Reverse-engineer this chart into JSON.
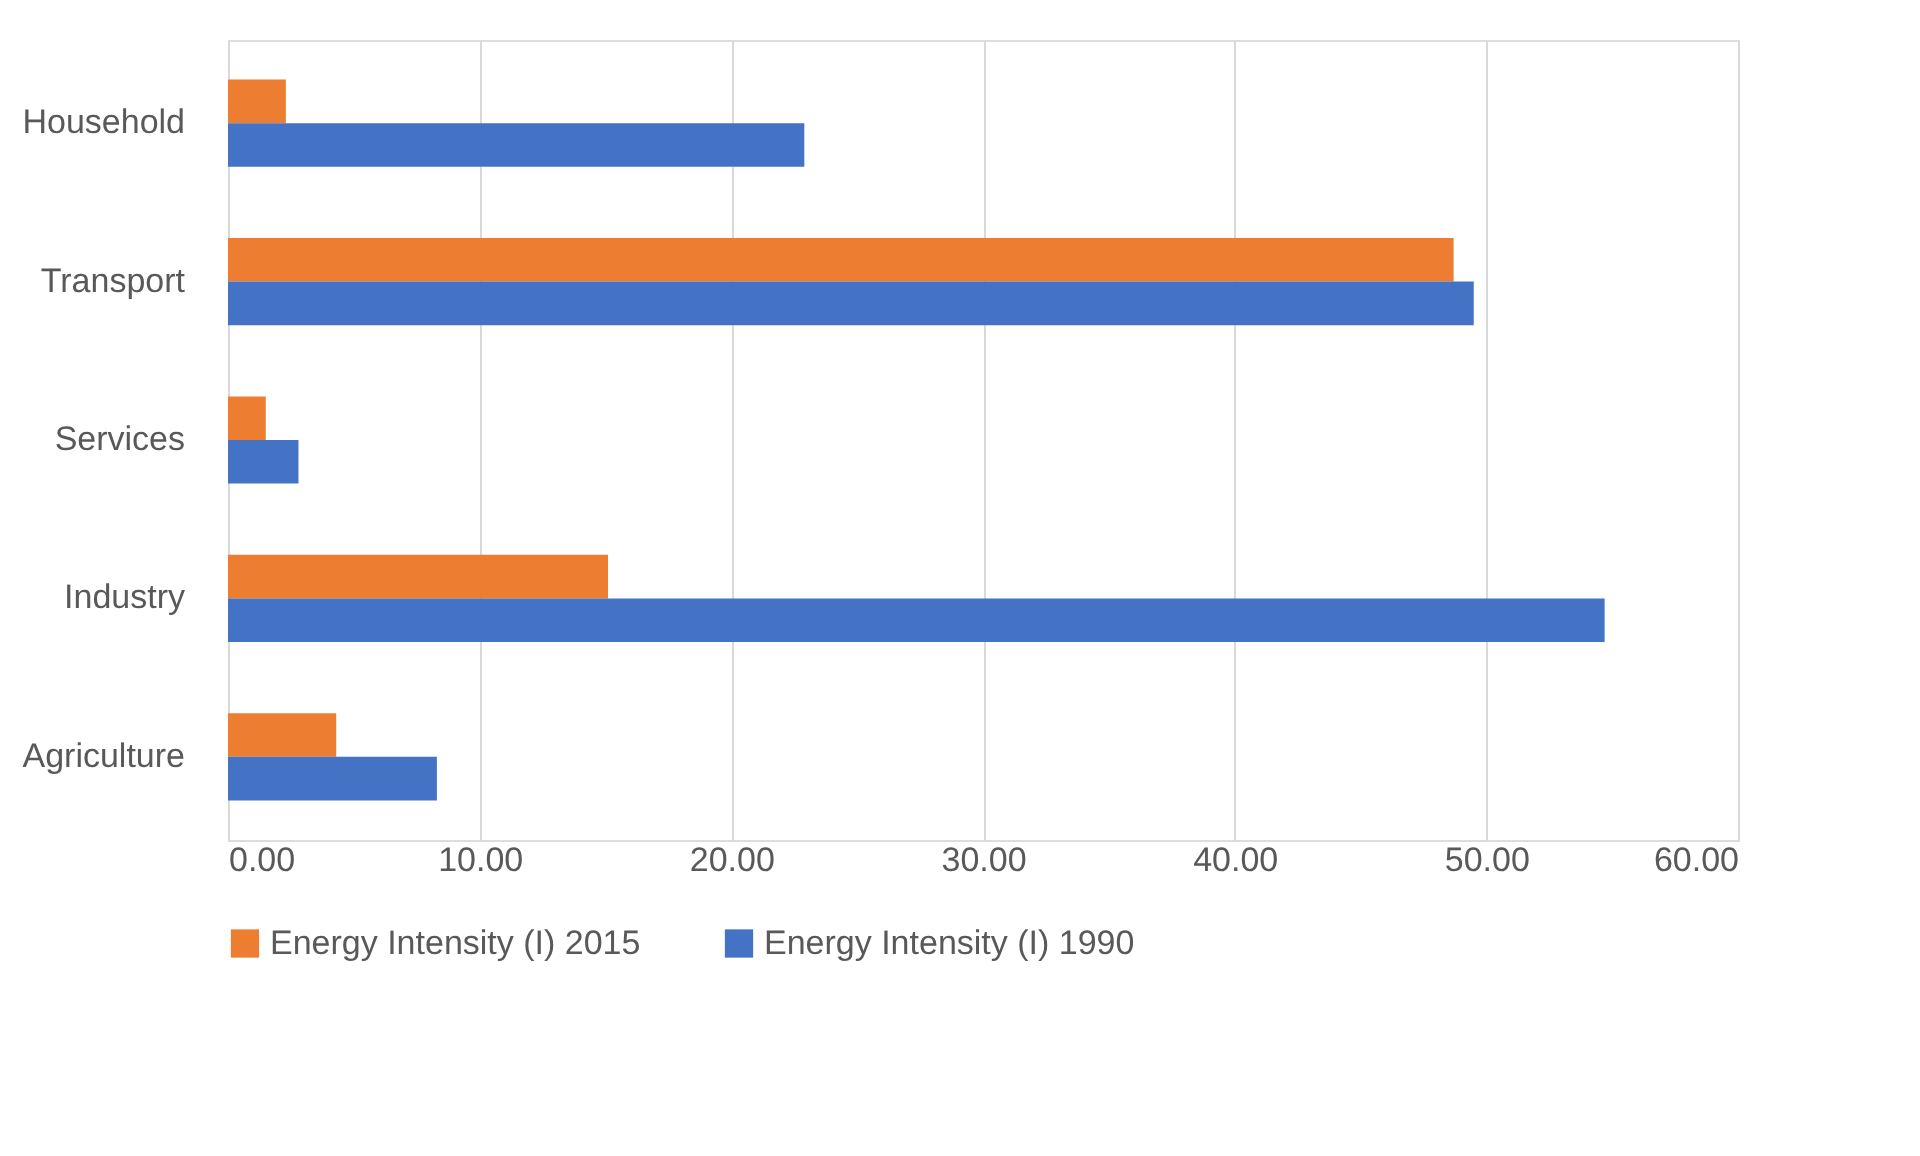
{
  "chart_data": {
    "type": "bar",
    "orientation": "horizontal",
    "categories": [
      "Household",
      "Transport",
      "Services",
      "Industry",
      "Agriculture"
    ],
    "series": [
      {
        "name": "Energy Intensity (I) 2015",
        "color": "#ed7d31",
        "values": [
          2.3,
          48.7,
          1.5,
          15.1,
          4.3
        ]
      },
      {
        "name": "Energy Intensity (I) 1990",
        "color": "#4472c4",
        "values": [
          22.9,
          49.5,
          2.8,
          54.7,
          8.3
        ]
      }
    ],
    "xlim": [
      0,
      60
    ],
    "xticks": [
      {
        "value": 0,
        "label": "0.00"
      },
      {
        "value": 10,
        "label": "10.00"
      },
      {
        "value": 20,
        "label": "20.00"
      },
      {
        "value": 30,
        "label": "30.00"
      },
      {
        "value": 40,
        "label": "40.00"
      },
      {
        "value": 50,
        "label": "50.00"
      },
      {
        "value": 60,
        "label": "60.00"
      }
    ],
    "grid": "x",
    "legend": "bottom"
  }
}
